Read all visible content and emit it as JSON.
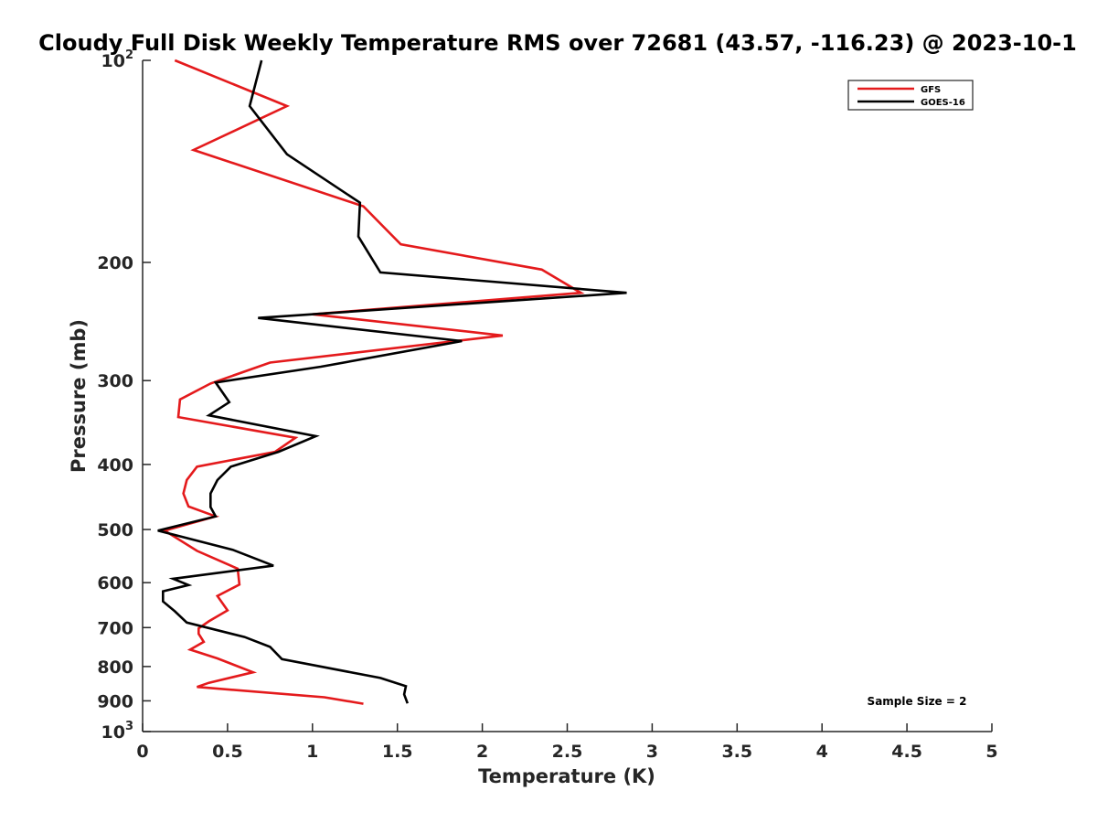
{
  "chart_data": {
    "type": "line",
    "title": "Cloudy Full Disk Weekly Temperature RMS over 72681 (43.57, -116.23) @ 2023-10-1",
    "xlabel": "Temperature (K)",
    "ylabel": "Pressure (mb)",
    "xlim": [
      0,
      5
    ],
    "ylim": [
      1000,
      100
    ],
    "yscale": "log",
    "y_reversed": true,
    "grid": false,
    "legend_position": "top-right",
    "x_ticks": [
      "0",
      "0.5",
      "1",
      "1.5",
      "2",
      "2.5",
      "3",
      "3.5",
      "4",
      "4.5",
      "5"
    ],
    "y_ticks": [
      {
        "value": 100,
        "base": "10",
        "exp": "2"
      },
      {
        "value": 200,
        "base": "200",
        "exp": ""
      },
      {
        "value": 300,
        "base": "300",
        "exp": ""
      },
      {
        "value": 400,
        "base": "400",
        "exp": ""
      },
      {
        "value": 500,
        "base": "500",
        "exp": ""
      },
      {
        "value": 600,
        "base": "600",
        "exp": ""
      },
      {
        "value": 700,
        "base": "700",
        "exp": ""
      },
      {
        "value": 800,
        "base": "800",
        "exp": ""
      },
      {
        "value": 900,
        "base": "900",
        "exp": ""
      },
      {
        "value": 1000,
        "base": "10",
        "exp": "3"
      }
    ],
    "annotation": "Sample Size = 2",
    "series": [
      {
        "name": "GFS",
        "color": "#e41a1c",
        "points": [
          [
            0.19,
            100
          ],
          [
            0.85,
            117
          ],
          [
            0.3,
            136
          ],
          [
            1.3,
            165
          ],
          [
            1.52,
            188
          ],
          [
            2.35,
            205
          ],
          [
            2.58,
            222
          ],
          [
            1.0,
            239
          ],
          [
            2.12,
            257
          ],
          [
            0.75,
            282
          ],
          [
            0.4,
            303
          ],
          [
            0.22,
            320
          ],
          [
            0.21,
            340
          ],
          [
            0.9,
            365
          ],
          [
            0.78,
            383
          ],
          [
            0.32,
            403
          ],
          [
            0.26,
            422
          ],
          [
            0.24,
            442
          ],
          [
            0.27,
            462
          ],
          [
            0.43,
            478
          ],
          [
            0.13,
            502
          ],
          [
            0.32,
            538
          ],
          [
            0.56,
            572
          ],
          [
            0.57,
            604
          ],
          [
            0.44,
            628
          ],
          [
            0.5,
            660
          ],
          [
            0.39,
            685
          ],
          [
            0.33,
            702
          ],
          [
            0.33,
            715
          ],
          [
            0.36,
            735
          ],
          [
            0.28,
            755
          ],
          [
            0.44,
            778
          ],
          [
            0.65,
            816
          ],
          [
            0.39,
            846
          ],
          [
            0.32,
            858
          ],
          [
            1.07,
            889
          ],
          [
            1.3,
            909
          ]
        ]
      },
      {
        "name": "GOES-16",
        "color": "#000000",
        "points": [
          [
            0.7,
            100
          ],
          [
            0.63,
            117
          ],
          [
            0.85,
            138
          ],
          [
            1.28,
            163
          ],
          [
            1.27,
            183
          ],
          [
            1.4,
            207
          ],
          [
            2.85,
            222
          ],
          [
            0.68,
            242
          ],
          [
            1.88,
            262
          ],
          [
            1.05,
            286
          ],
          [
            0.43,
            302
          ],
          [
            0.51,
            323
          ],
          [
            0.39,
            338
          ],
          [
            1.02,
            363
          ],
          [
            0.8,
            383
          ],
          [
            0.52,
            403
          ],
          [
            0.44,
            422
          ],
          [
            0.4,
            442
          ],
          [
            0.4,
            463
          ],
          [
            0.43,
            478
          ],
          [
            0.09,
            502
          ],
          [
            0.53,
            536
          ],
          [
            0.77,
            566
          ],
          [
            0.18,
            592
          ],
          [
            0.27,
            605
          ],
          [
            0.12,
            618
          ],
          [
            0.12,
            640
          ],
          [
            0.19,
            662
          ],
          [
            0.26,
            688
          ],
          [
            0.6,
            723
          ],
          [
            0.75,
            748
          ],
          [
            0.82,
            780
          ],
          [
            1.4,
            832
          ],
          [
            1.55,
            856
          ],
          [
            1.54,
            880
          ],
          [
            1.56,
            908
          ]
        ]
      }
    ]
  }
}
